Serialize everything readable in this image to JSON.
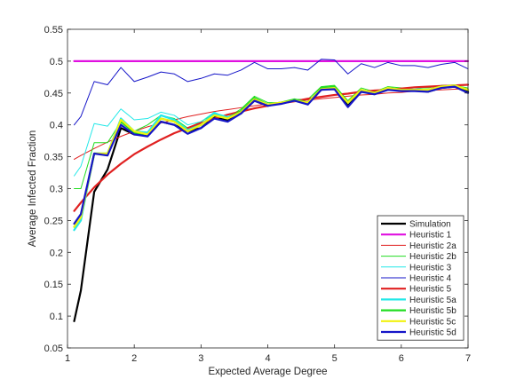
{
  "chart_data": {
    "type": "line",
    "title": "",
    "xlabel": "Expected Average Degree",
    "ylabel": "Average Infected Fraction",
    "xlim": [
      1,
      7
    ],
    "ylim": [
      0.05,
      0.55
    ],
    "xticks": [
      1,
      2,
      3,
      4,
      5,
      6,
      7
    ],
    "xtick_labels": [
      "1",
      "2",
      "3",
      "4",
      "5",
      "6",
      "7"
    ],
    "yticks": [
      0.05,
      0.1,
      0.15,
      0.2,
      0.25,
      0.3,
      0.35,
      0.4,
      0.45,
      0.5,
      0.55
    ],
    "ytick_labels": [
      "0.05",
      "0.1",
      "0.15",
      "0.2",
      "0.25",
      "0.3",
      "0.35",
      "0.4",
      "0.45",
      "0.5",
      "0.55"
    ],
    "grid": false,
    "legend_position": "bottom-right",
    "x": [
      1.1,
      1.2,
      1.4,
      1.6,
      1.8,
      2.0,
      2.2,
      2.4,
      2.6,
      2.8,
      3.0,
      3.2,
      3.4,
      3.6,
      3.8,
      4.0,
      4.2,
      4.4,
      4.6,
      4.8,
      5.0,
      5.2,
      5.4,
      5.6,
      5.8,
      6.0,
      6.2,
      6.4,
      6.6,
      6.8,
      7.0
    ],
    "series": [
      {
        "name": "Simulation",
        "color": "#000000",
        "width": 2.2,
        "values": [
          0.092,
          0.14,
          0.295,
          0.33,
          0.395,
          0.385,
          0.385,
          0.405,
          0.4,
          0.39,
          0.395,
          0.412,
          0.408,
          0.418,
          0.438,
          0.43,
          0.435,
          0.438,
          0.435,
          0.455,
          0.458,
          0.43,
          0.452,
          0.45,
          0.458,
          0.455,
          0.455,
          0.452,
          0.458,
          0.46,
          0.452
        ]
      },
      {
        "name": "Heuristic 1",
        "color": "#e010e0",
        "width": 2.2,
        "values": [
          0.5,
          0.5,
          0.5,
          0.5,
          0.5,
          0.5,
          0.5,
          0.5,
          0.5,
          0.5,
          0.5,
          0.5,
          0.5,
          0.5,
          0.5,
          0.5,
          0.5,
          0.5,
          0.5,
          0.5,
          0.5,
          0.5,
          0.5,
          0.5,
          0.5,
          0.5,
          0.5,
          0.5,
          0.5,
          0.5,
          0.5
        ]
      },
      {
        "name": "Heuristic 2a",
        "color": "#e02020",
        "width": 1,
        "values": [
          0.346,
          0.352,
          0.363,
          0.373,
          0.382,
          0.39,
          0.397,
          0.403,
          0.408,
          0.413,
          0.417,
          0.421,
          0.424,
          0.427,
          0.43,
          0.433,
          0.435,
          0.437,
          0.439,
          0.441,
          0.443,
          0.445,
          0.447,
          0.448,
          0.45,
          0.451,
          0.453,
          0.454,
          0.455,
          0.456,
          0.457
        ]
      },
      {
        "name": "Heuristic 2b",
        "color": "#22dd22",
        "width": 1,
        "values": [
          0.3,
          0.3,
          0.372,
          0.372,
          0.405,
          0.39,
          0.4,
          0.415,
          0.41,
          0.395,
          0.405,
          0.418,
          0.412,
          0.425,
          0.445,
          0.435,
          0.435,
          0.44,
          0.44,
          0.46,
          0.462,
          0.438,
          0.458,
          0.452,
          0.46,
          0.458,
          0.458,
          0.458,
          0.462,
          0.462,
          0.458
        ]
      },
      {
        "name": "Heuristic 3",
        "color": "#22e8e8",
        "width": 1,
        "values": [
          0.32,
          0.335,
          0.402,
          0.398,
          0.425,
          0.408,
          0.41,
          0.42,
          0.415,
          0.4,
          0.405,
          0.42,
          0.41,
          0.422,
          0.44,
          0.432,
          0.435,
          0.44,
          0.435,
          0.456,
          0.458,
          0.435,
          0.455,
          0.45,
          0.458,
          0.455,
          0.458,
          0.455,
          0.46,
          0.462,
          0.455
        ]
      },
      {
        "name": "Heuristic 4",
        "color": "#1515c8",
        "width": 1,
        "values": [
          0.4,
          0.413,
          0.468,
          0.463,
          0.49,
          0.468,
          0.475,
          0.483,
          0.48,
          0.468,
          0.473,
          0.48,
          0.478,
          0.486,
          0.498,
          0.488,
          0.488,
          0.49,
          0.486,
          0.503,
          0.502,
          0.48,
          0.496,
          0.49,
          0.498,
          0.493,
          0.493,
          0.49,
          0.495,
          0.498,
          0.488
        ]
      },
      {
        "name": "Heuristic 5",
        "color": "#e02020",
        "width": 2.2,
        "values": [
          0.265,
          0.278,
          0.302,
          0.322,
          0.339,
          0.354,
          0.366,
          0.377,
          0.387,
          0.395,
          0.403,
          0.41,
          0.416,
          0.421,
          0.426,
          0.43,
          0.434,
          0.437,
          0.441,
          0.444,
          0.447,
          0.449,
          0.452,
          0.454,
          0.455,
          0.457,
          0.459,
          0.46,
          0.461,
          0.462,
          0.463
        ]
      },
      {
        "name": "Heuristic 5a",
        "color": "#22e8e8",
        "width": 2.2,
        "values": [
          0.235,
          0.25,
          0.355,
          0.355,
          0.41,
          0.39,
          0.388,
          0.415,
          0.408,
          0.392,
          0.4,
          0.418,
          0.412,
          0.42,
          0.44,
          0.432,
          0.435,
          0.438,
          0.435,
          0.456,
          0.458,
          0.435,
          0.455,
          0.45,
          0.458,
          0.455,
          0.455,
          0.455,
          0.46,
          0.462,
          0.455
        ]
      },
      {
        "name": "Heuristic 5b",
        "color": "#22dd22",
        "width": 2.2,
        "values": [
          0.24,
          0.255,
          0.355,
          0.355,
          0.405,
          0.388,
          0.385,
          0.41,
          0.405,
          0.39,
          0.4,
          0.415,
          0.41,
          0.422,
          0.442,
          0.432,
          0.435,
          0.44,
          0.435,
          0.458,
          0.46,
          0.435,
          0.455,
          0.45,
          0.458,
          0.455,
          0.455,
          0.455,
          0.46,
          0.462,
          0.455
        ]
      },
      {
        "name": "Heuristic 5c",
        "color": "#f2f210",
        "width": 2.2,
        "values": [
          0.24,
          0.255,
          0.355,
          0.355,
          0.408,
          0.39,
          0.385,
          0.41,
          0.405,
          0.39,
          0.4,
          0.415,
          0.41,
          0.42,
          0.44,
          0.432,
          0.435,
          0.438,
          0.435,
          0.456,
          0.458,
          0.435,
          0.455,
          0.45,
          0.458,
          0.455,
          0.455,
          0.455,
          0.46,
          0.462,
          0.455
        ]
      },
      {
        "name": "Heuristic 5d",
        "color": "#1515c8",
        "width": 2.2,
        "values": [
          0.245,
          0.26,
          0.355,
          0.352,
          0.4,
          0.385,
          0.382,
          0.405,
          0.4,
          0.386,
          0.395,
          0.41,
          0.405,
          0.418,
          0.438,
          0.43,
          0.433,
          0.438,
          0.432,
          0.455,
          0.456,
          0.428,
          0.452,
          0.448,
          0.455,
          0.453,
          0.453,
          0.452,
          0.458,
          0.46,
          0.45
        ]
      }
    ]
  }
}
